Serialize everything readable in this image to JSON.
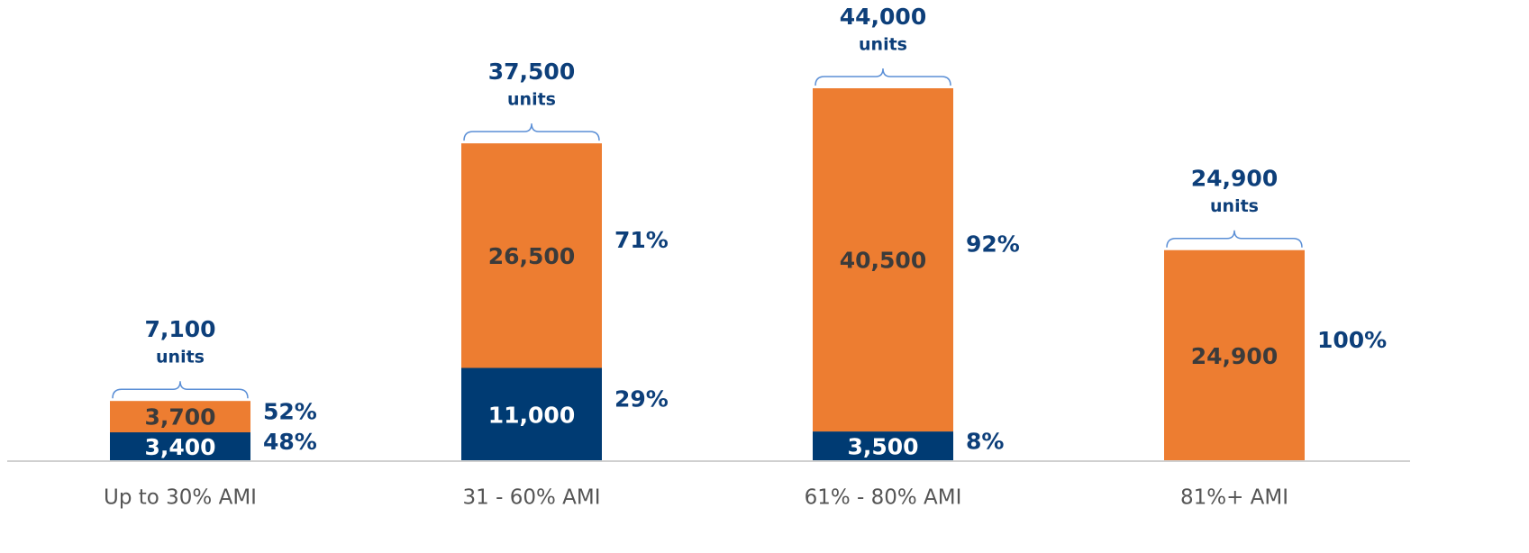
{
  "chart_data": {
    "type": "stacked_bar",
    "categories": [
      "Up to 30% AMI",
      "31 - 60% AMI",
      "61% - 80% AMI",
      "81%+ AMI"
    ],
    "series": [
      {
        "color": "#003b73",
        "values": [
          3400,
          11000,
          3500,
          0
        ],
        "value_labels": [
          "3,400",
          "11,000",
          "3,500",
          "0"
        ],
        "share_labels": [
          "48%",
          "29%",
          "8%",
          null
        ]
      },
      {
        "color": "#ed7d31",
        "values": [
          3700,
          26500,
          40500,
          24900
        ],
        "value_labels": [
          "3,700",
          "26,500",
          "40,500",
          "24,900"
        ],
        "share_labels": [
          "52%",
          "71%",
          "92%",
          "100%"
        ]
      }
    ],
    "total_labels": [
      "7,100",
      "37,500",
      "44,000",
      "24,900"
    ],
    "unit_label": "units",
    "ylim": [
      0,
      44000
    ]
  }
}
